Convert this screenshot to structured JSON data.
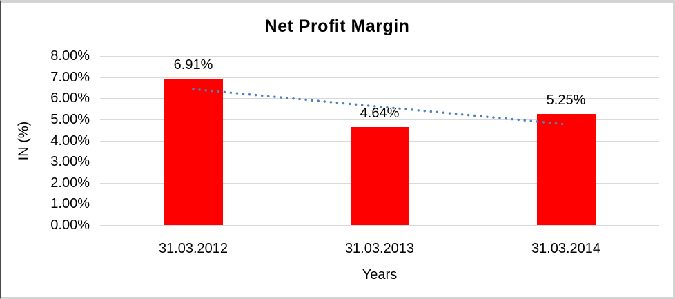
{
  "chart": {
    "title": "Net Profit Margin",
    "xlabel": "Years",
    "ylabel": "IN (%)"
  },
  "chart_data": {
    "type": "bar",
    "title": "Net Profit Margin",
    "xlabel": "Years",
    "ylabel": "IN (%)",
    "categories": [
      "31.03.2012",
      "31.03.2013",
      "31.03.2014"
    ],
    "values": [
      6.91,
      4.64,
      5.25
    ],
    "data_labels": [
      "6.91%",
      "4.64%",
      "5.25%"
    ],
    "ylim": [
      0,
      8
    ],
    "ytick_step": 1,
    "ytick_labels": [
      "0.00%",
      "1.00%",
      "2.00%",
      "3.00%",
      "4.00%",
      "5.00%",
      "6.00%",
      "7.00%",
      "8.00%"
    ],
    "grid": true,
    "legend": "none",
    "bar_color": "#ff0000",
    "gridline_color": "#d9d9d9",
    "trendline": {
      "type": "linear-dotted",
      "color": "#4f81bd",
      "start_value": 6.43,
      "end_value": 4.77
    }
  }
}
